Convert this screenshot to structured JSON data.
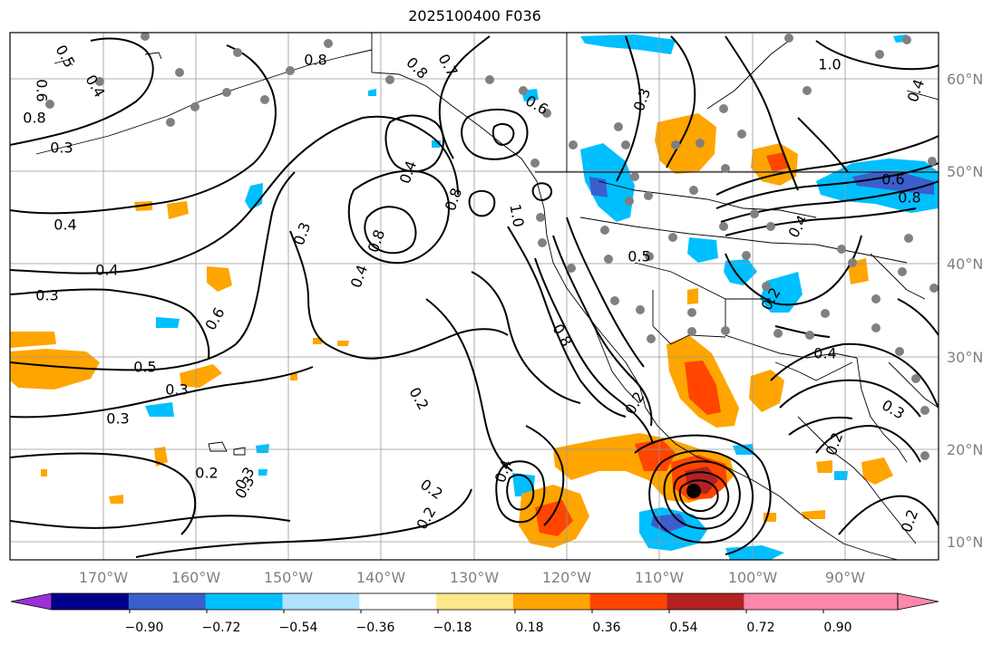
{
  "title": "2025100400 F036",
  "map": {
    "lon_ticks": [
      "170°W",
      "160°W",
      "150°W",
      "140°W",
      "130°W",
      "120°W",
      "110°W",
      "100°W",
      "90°W"
    ],
    "lat_ticks": [
      "60°N",
      "50°N",
      "40°N",
      "30°N",
      "20°N",
      "10°N"
    ],
    "contour_labels": [
      "0.5",
      "0.4",
      "0.6",
      "0.8",
      "0.3",
      "0.4",
      "0.4",
      "0.3",
      "0.5",
      "0.3",
      "0.3",
      "0.2",
      "0.3",
      "0.6",
      "0.3",
      "0.8",
      "0.4",
      "0.4",
      "0.8",
      "0.8",
      "0.8",
      "0.7",
      "0.6",
      "0.3",
      "1.0",
      "0.8",
      "0.2",
      "0.2",
      "0.2",
      "0.4",
      "0.3",
      "1.0",
      "0.8",
      "0.5",
      "0.2",
      "0.6",
      "0.4",
      "0.2",
      "0.4",
      "0.3",
      "0.2",
      "0.2",
      "0.4"
    ]
  },
  "colorbar": {
    "tick_labels": [
      "−0.90",
      "−0.72",
      "−0.54",
      "−0.36",
      "−0.18",
      "0.18",
      "0.36",
      "0.54",
      "0.72",
      "0.90"
    ],
    "colors": [
      "#9b30d9",
      "#00008b",
      "#3a5fcd",
      "#00bfff",
      "#b0e2ff",
      "#ffffff",
      "#ffe88a",
      "#ffa500",
      "#ff4500",
      "#b22222",
      "#ff88aa",
      "#ff88aa"
    ]
  }
}
